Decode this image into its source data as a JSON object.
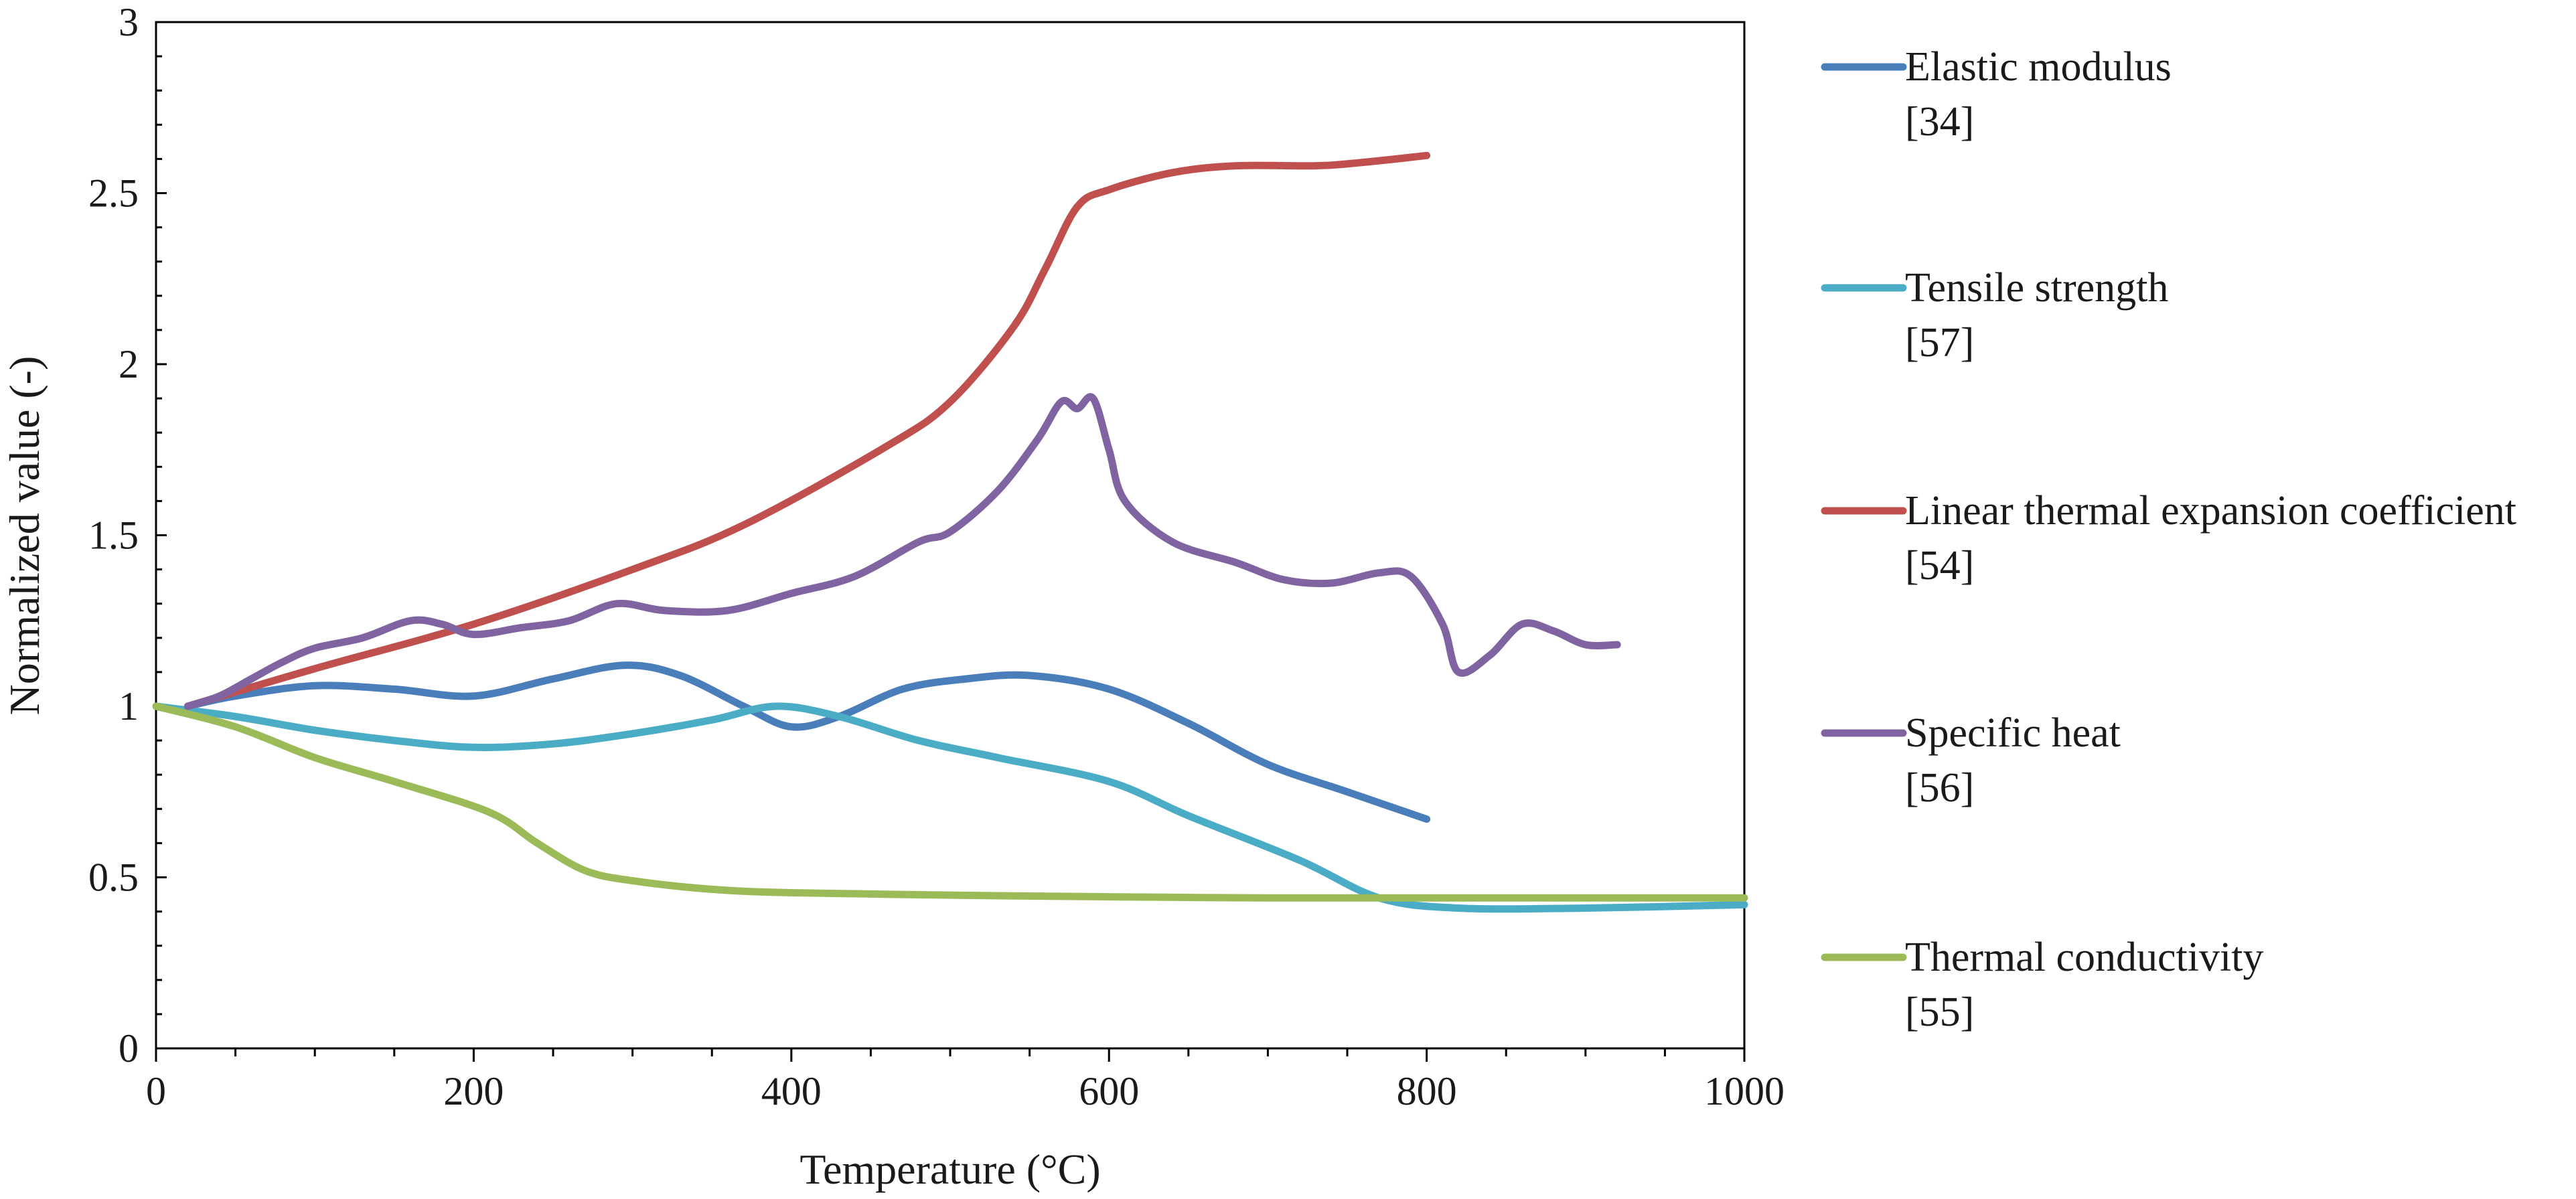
{
  "chart_data": {
    "type": "line",
    "title": "",
    "xlabel": "Temperature (°C)",
    "ylabel": "Normalized value (-)",
    "xlim": [
      0,
      1000
    ],
    "ylim": [
      0,
      3
    ],
    "xticks": [
      0,
      200,
      400,
      600,
      800,
      1000
    ],
    "yticks": [
      0,
      0.5,
      1,
      1.5,
      2,
      2.5,
      3
    ],
    "xtick_labels": [
      "0",
      "200",
      "400",
      "600",
      "800",
      "1000"
    ],
    "ytick_labels": [
      "0",
      "0.5",
      "1",
      "1.5",
      "2",
      "2.5",
      "3"
    ],
    "grid": false,
    "legend_position": "right",
    "series": [
      {
        "name": "Elastic modulus",
        "ref": "[34]",
        "color": "#4a7ebb",
        "points": [
          [
            20,
            1.0
          ],
          [
            50,
            1.03
          ],
          [
            100,
            1.06
          ],
          [
            150,
            1.05
          ],
          [
            200,
            1.03
          ],
          [
            250,
            1.08
          ],
          [
            295,
            1.12
          ],
          [
            330,
            1.09
          ],
          [
            370,
            1.0
          ],
          [
            400,
            0.94
          ],
          [
            430,
            0.97
          ],
          [
            470,
            1.05
          ],
          [
            510,
            1.08
          ],
          [
            550,
            1.09
          ],
          [
            600,
            1.05
          ],
          [
            650,
            0.95
          ],
          [
            700,
            0.83
          ],
          [
            750,
            0.75
          ],
          [
            800,
            0.67
          ]
        ]
      },
      {
        "name": "Tensile strength",
        "ref": "[57]",
        "color": "#4bacc6",
        "points": [
          [
            0,
            1.0
          ],
          [
            50,
            0.97
          ],
          [
            100,
            0.93
          ],
          [
            150,
            0.9
          ],
          [
            200,
            0.88
          ],
          [
            250,
            0.89
          ],
          [
            300,
            0.92
          ],
          [
            350,
            0.96
          ],
          [
            390,
            1.0
          ],
          [
            430,
            0.97
          ],
          [
            480,
            0.9
          ],
          [
            530,
            0.85
          ],
          [
            600,
            0.78
          ],
          [
            650,
            0.68
          ],
          [
            720,
            0.55
          ],
          [
            770,
            0.44
          ],
          [
            820,
            0.41
          ],
          [
            900,
            0.41
          ],
          [
            1000,
            0.42
          ]
        ]
      },
      {
        "name": "Linear thermal expansion coefficient",
        "ref": "[54]",
        "color": "#c0504d",
        "points": [
          [
            20,
            1.0
          ],
          [
            100,
            1.11
          ],
          [
            200,
            1.24
          ],
          [
            300,
            1.4
          ],
          [
            370,
            1.53
          ],
          [
            460,
            1.76
          ],
          [
            500,
            1.89
          ],
          [
            540,
            2.11
          ],
          [
            560,
            2.28
          ],
          [
            580,
            2.46
          ],
          [
            600,
            2.51
          ],
          [
            640,
            2.56
          ],
          [
            680,
            2.58
          ],
          [
            730,
            2.58
          ],
          [
            760,
            2.59
          ],
          [
            800,
            2.61
          ]
        ]
      },
      {
        "name": "Specific heat",
        "ref": "[56]",
        "color": "#8064a2",
        "points": [
          [
            20,
            1.0
          ],
          [
            40,
            1.03
          ],
          [
            60,
            1.08
          ],
          [
            80,
            1.13
          ],
          [
            100,
            1.17
          ],
          [
            130,
            1.2
          ],
          [
            160,
            1.25
          ],
          [
            180,
            1.24
          ],
          [
            200,
            1.21
          ],
          [
            230,
            1.23
          ],
          [
            260,
            1.25
          ],
          [
            290,
            1.3
          ],
          [
            320,
            1.28
          ],
          [
            360,
            1.28
          ],
          [
            400,
            1.33
          ],
          [
            440,
            1.38
          ],
          [
            480,
            1.48
          ],
          [
            500,
            1.51
          ],
          [
            530,
            1.63
          ],
          [
            555,
            1.78
          ],
          [
            570,
            1.89
          ],
          [
            580,
            1.87
          ],
          [
            590,
            1.9
          ],
          [
            600,
            1.75
          ],
          [
            610,
            1.6
          ],
          [
            640,
            1.48
          ],
          [
            680,
            1.42
          ],
          [
            710,
            1.37
          ],
          [
            740,
            1.36
          ],
          [
            770,
            1.39
          ],
          [
            790,
            1.38
          ],
          [
            810,
            1.24
          ],
          [
            820,
            1.1
          ],
          [
            840,
            1.15
          ],
          [
            860,
            1.24
          ],
          [
            880,
            1.22
          ],
          [
            900,
            1.18
          ],
          [
            920,
            1.18
          ]
        ]
      },
      {
        "name": "Thermal conductivity",
        "ref": "[55]",
        "color": "#9bbb59",
        "points": [
          [
            0,
            1.0
          ],
          [
            50,
            0.94
          ],
          [
            100,
            0.85
          ],
          [
            150,
            0.78
          ],
          [
            210,
            0.69
          ],
          [
            240,
            0.6
          ],
          [
            270,
            0.52
          ],
          [
            300,
            0.49
          ],
          [
            350,
            0.465
          ],
          [
            400,
            0.455
          ],
          [
            500,
            0.448
          ],
          [
            600,
            0.443
          ],
          [
            700,
            0.44
          ],
          [
            800,
            0.44
          ],
          [
            900,
            0.44
          ],
          [
            1000,
            0.44
          ]
        ]
      }
    ]
  }
}
